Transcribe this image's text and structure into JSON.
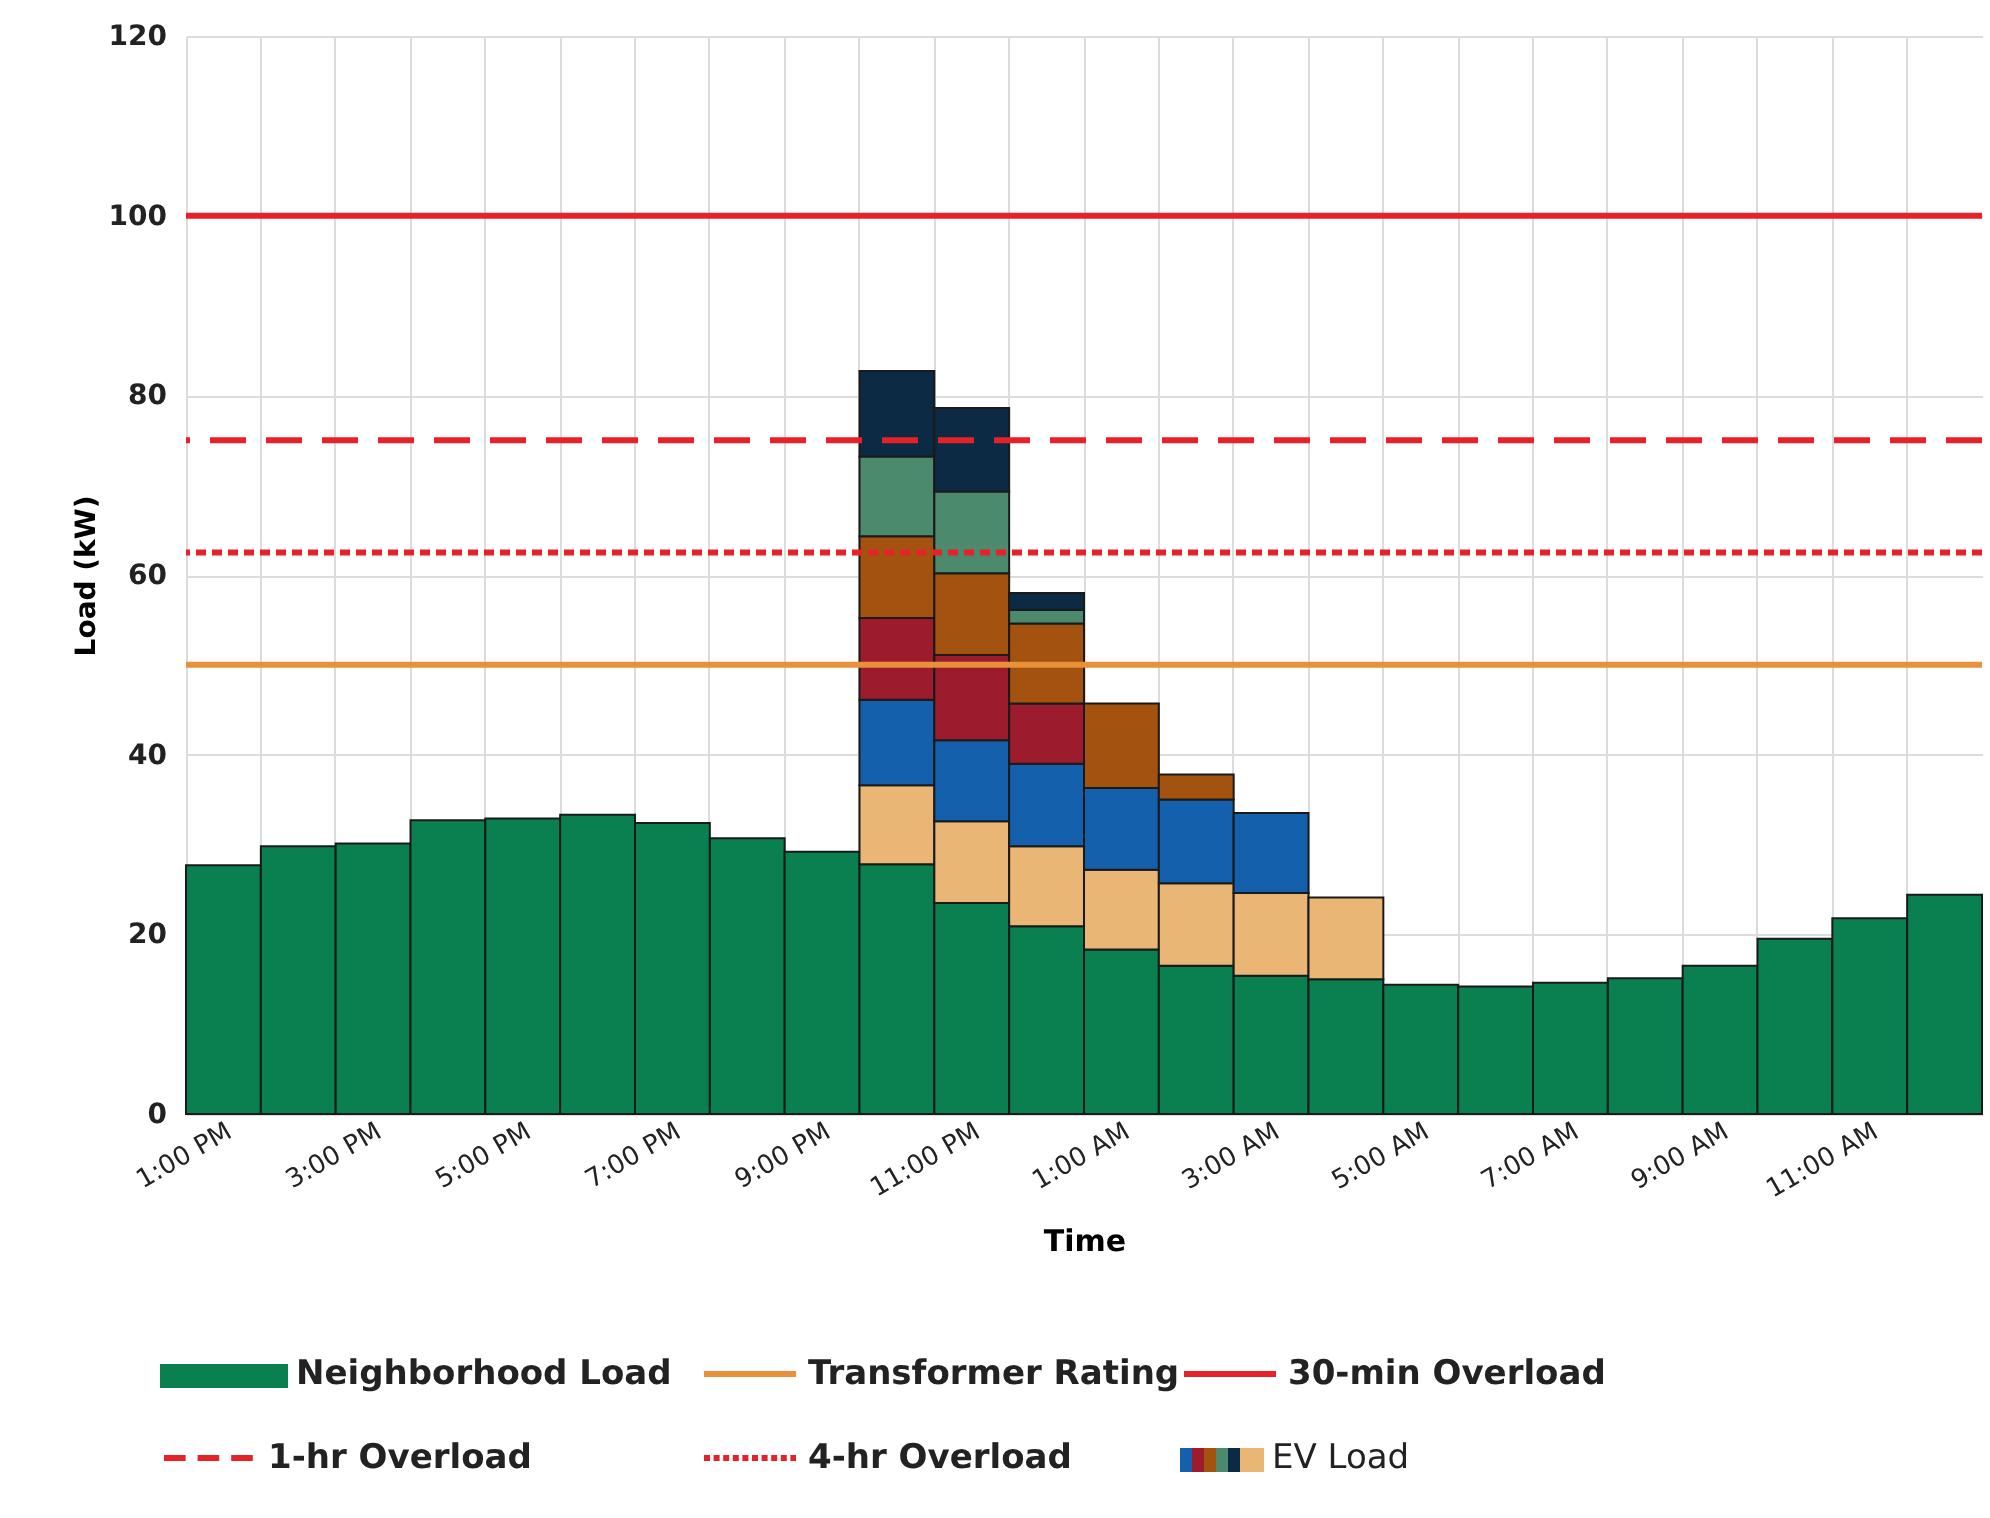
{
  "chart_data": {
    "type": "bar",
    "stacked": true,
    "xlabel": "Time",
    "ylabel": "Load (kW)",
    "categories": [
      "1:00 PM",
      null,
      "3:00 PM",
      null,
      "5:00 PM",
      null,
      "7:00 PM",
      null,
      "9:00 PM",
      null,
      "11:00 PM",
      null,
      "1:00 AM",
      null,
      "3:00 AM",
      null,
      "5:00 AM",
      null,
      "7:00 AM",
      null,
      "9:00 AM",
      null,
      "11:00 AM",
      null
    ],
    "series": [
      {
        "name": "Neighborhood Load",
        "color": "#0a8050",
        "values": [
          27.7,
          29.8,
          30.1,
          32.7,
          32.9,
          33.3,
          32.4,
          30.7,
          29.2,
          27.8,
          23.5,
          20.9,
          18.3,
          16.5,
          15.4,
          15.0,
          14.4,
          14.2,
          14.6,
          15.1,
          16.5,
          19.5,
          21.8,
          24.4
        ]
      },
      {
        "name": "EV Load",
        "color": "#eab676",
        "values": [
          null,
          null,
          null,
          null,
          null,
          null,
          null,
          null,
          null,
          8.8,
          9.1,
          8.9,
          8.9,
          9.2,
          9.2,
          9.1,
          null,
          null,
          null,
          null,
          null,
          null,
          null,
          null
        ]
      },
      {
        "color": "#1560ad",
        "values": [
          null,
          null,
          null,
          null,
          null,
          null,
          null,
          null,
          null,
          9.5,
          9.0,
          9.2,
          9.1,
          9.3,
          8.9,
          null,
          null,
          null,
          null,
          null,
          null,
          null,
          null,
          null
        ]
      },
      {
        "color": "#9c1c2e",
        "values": [
          null,
          null,
          null,
          null,
          null,
          null,
          null,
          null,
          null,
          9.1,
          9.5,
          6.7,
          null,
          null,
          null,
          null,
          null,
          null,
          null,
          null,
          null,
          null,
          null,
          null
        ]
      },
      {
        "color": "#a3520f",
        "values": [
          null,
          null,
          null,
          null,
          null,
          null,
          null,
          null,
          null,
          9.1,
          9.1,
          8.9,
          9.4,
          2.8,
          null,
          null,
          null,
          null,
          null,
          null,
          null,
          null,
          null,
          null
        ]
      },
      {
        "color": "#4b8a6c",
        "values": [
          null,
          null,
          null,
          null,
          null,
          null,
          null,
          null,
          null,
          8.9,
          9.1,
          1.5,
          null,
          null,
          null,
          null,
          null,
          null,
          null,
          null,
          null,
          null,
          null,
          null
        ]
      },
      {
        "color": "#0d2a45",
        "values": [
          null,
          null,
          null,
          null,
          null,
          null,
          null,
          null,
          null,
          9.5,
          9.3,
          1.9,
          null,
          null,
          null,
          null,
          null,
          null,
          null,
          null,
          null,
          null,
          null,
          null
        ]
      }
    ],
    "ref_lines": [
      {
        "axis": "y",
        "value": 50,
        "label": "Transformer Rating",
        "color": "#e8913a",
        "line_style": "solid"
      },
      {
        "axis": "y",
        "value": 100,
        "label": "30-min Overload",
        "color": "#e52228",
        "line_style": "solid"
      },
      {
        "axis": "y",
        "value": 75,
        "label": "1-hr Overload",
        "color": "#e52228",
        "line_style": "dashed"
      },
      {
        "axis": "y",
        "value": 62.5,
        "label": "4-hr Overload",
        "color": "#e52228",
        "line_style": "dotted"
      }
    ],
    "ylim": [
      0,
      120
    ],
    "yticks": [
      0,
      20,
      40,
      60,
      80,
      100,
      120
    ],
    "grid": true,
    "legend": "bottom"
  }
}
